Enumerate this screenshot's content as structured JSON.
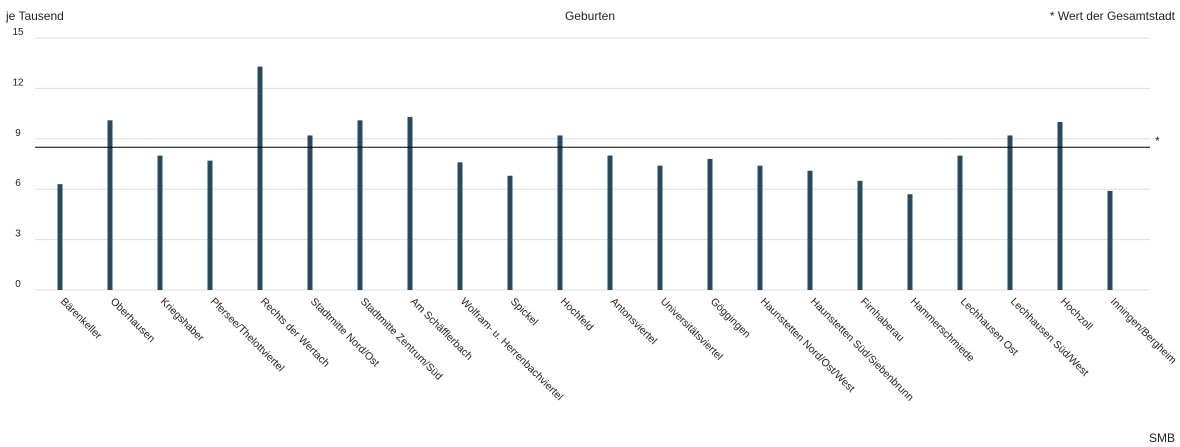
{
  "chart_data": {
    "type": "bar",
    "title": "Geburten",
    "y_label": "je Tausend",
    "note": "* Wert der Gesamtstadt",
    "source": "SMB",
    "categories": [
      "Bärenkeller",
      "Oberhausen",
      "Kriegshaber",
      "Pfersee/Thelottviertel",
      "Rechts der Wertach",
      "Stadtmitte Nord/Ost",
      "Stadtmitte Zentrum/Süd",
      "Am Schäfflerbach",
      "Wolfram- u. Herrenbachviertel",
      "Spickel",
      "Hochfeld",
      "Antonsviertel",
      "Universitätsviertel",
      "Göggingen",
      "Haunstetten Nord/Ost/West",
      "Haunstetten Süd/Siebenbrunn",
      "Firnhaberau",
      "Hammerschmiede",
      "Lechhausen Ost",
      "Lechhausen Süd/West",
      "Hochzoll",
      "Inningen/Bergheim"
    ],
    "values": [
      6.3,
      10.1,
      8.0,
      7.7,
      13.3,
      9.2,
      10.1,
      10.3,
      7.6,
      6.8,
      9.2,
      8.0,
      7.4,
      7.8,
      7.4,
      7.1,
      6.5,
      5.7,
      8.0,
      9.2,
      10.0,
      5.9
    ],
    "color": "#2b4a5f",
    "reference": {
      "value": 8.5,
      "label": "*"
    },
    "ylim": [
      0,
      15
    ],
    "yticks": [
      0,
      3,
      6,
      9,
      12,
      15
    ],
    "grid": true
  }
}
